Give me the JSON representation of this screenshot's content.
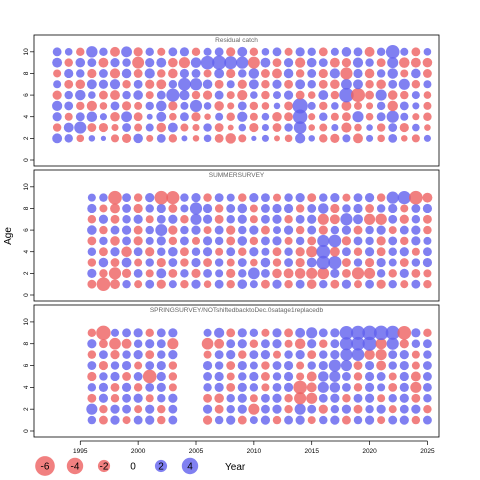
{
  "chart_data": {
    "type": "scatter",
    "subtype": "residual bubble plot",
    "xlabel": "Year",
    "ylabel": "Age",
    "xlim": [
      1991,
      2026
    ],
    "x_ticks": [
      1995,
      2000,
      2005,
      2010,
      2015,
      2020,
      2025
    ],
    "y_ticks": [
      0,
      2,
      4,
      6,
      8,
      10
    ],
    "colors": {
      "positive": "#6060ee",
      "negative": "#ee6060",
      "negative_alpha": 0.8,
      "positive_alpha": 0.8
    },
    "legend": {
      "placement": "bottom-left",
      "values": [
        -6,
        -4,
        -2,
        0,
        2,
        4
      ],
      "labels": [
        "-6",
        "-4",
        "-2",
        "0",
        "2",
        "4"
      ]
    },
    "panels": [
      {
        "title": "Residual catch",
        "ylim": [
          0,
          11
        ],
        "years": [
          1993,
          1994,
          1995,
          1996,
          1997,
          1998,
          1999,
          2000,
          2001,
          2002,
          2003,
          2004,
          2005,
          2006,
          2007,
          2008,
          2009,
          2010,
          2011,
          2012,
          2013,
          2014,
          2015,
          2016,
          2017,
          2018,
          2019,
          2020,
          2021,
          2022,
          2023,
          2024,
          2025
        ],
        "ages": [
          2,
          3,
          4,
          5,
          6,
          7,
          8,
          9,
          10
        ],
        "residuals": [
          [
            1.2,
            0.8,
            -0.6,
            0.4,
            0.2,
            -0.7,
            -1.0,
            1.1,
            -0.5,
            0.9,
            -0.8,
            0.3,
            -0.4,
            0.6,
            -0.9,
            -1.4,
            -0.7,
            0.2,
            0.5,
            -0.3,
            -0.6,
            1.3,
            0.4,
            -0.8,
            -1.0,
            0.7,
            -1.2,
            0.5,
            -0.6,
            0.9,
            -0.4,
            -0.7,
            0.5
          ],
          [
            -0.8,
            1.2,
            2.0,
            -0.9,
            -1.0,
            -0.5,
            0.9,
            -0.7,
            0.7,
            -1.1,
            1.2,
            -0.7,
            -0.5,
            0.8,
            -0.9,
            -0.3,
            0.6,
            -1.0,
            0.5,
            -0.9,
            0.8,
            2.2,
            -0.4,
            -0.7,
            0.5,
            -1.3,
            -0.6,
            0.4,
            -0.8,
            0.9,
            -1.0,
            0.6,
            -0.4
          ],
          [
            1.0,
            -0.7,
            0.9,
            1.4,
            0.5,
            -1.1,
            1.5,
            -0.9,
            0.3,
            1.2,
            -0.6,
            0.9,
            -1.0,
            -0.4,
            0.7,
            -0.8,
            1.3,
            -0.7,
            0.6,
            -1.1,
            -0.9,
            3.0,
            -0.5,
            0.8,
            -0.7,
            -0.9,
            1.6,
            -0.6,
            0.9,
            2.0,
            0.7,
            -0.5,
            -0.8
          ],
          [
            1.3,
            0.9,
            -0.8,
            -1.3,
            -0.6,
            0.9,
            -1.0,
            -0.7,
            0.8,
            1.4,
            -1.0,
            0.7,
            2.0,
            0.6,
            -1.1,
            -0.5,
            0.9,
            -0.8,
            -0.6,
            0.4,
            -0.9,
            3.4,
            0.7,
            -0.8,
            0.6,
            -1.2,
            -0.7,
            -0.5,
            0.8,
            -1.4,
            0.9,
            0.5,
            -0.7
          ],
          [
            -1.0,
            0.8,
            1.4,
            0.6,
            -0.9,
            -1.2,
            0.8,
            1.1,
            -0.7,
            0.9,
            2.4,
            1.3,
            -0.8,
            -1.0,
            0.9,
            -0.7,
            -1.3,
            0.6,
            -0.8,
            0.7,
            1.0,
            -0.9,
            -0.6,
            1.2,
            -0.8,
            3.0,
            -2.8,
            -0.9,
            1.6,
            -1.1,
            -0.8,
            0.7,
            -0.6
          ],
          [
            0.7,
            -0.9,
            -1.1,
            1.2,
            1.0,
            1.3,
            -0.8,
            0.9,
            -1.0,
            -1.2,
            0.8,
            2.2,
            2.0,
            1.1,
            -0.9,
            0.7,
            -1.0,
            1.2,
            -0.8,
            1.0,
            -0.9,
            1.2,
            0.8,
            -0.9,
            -1.1,
            1.5,
            1.2,
            -0.8,
            -1.1,
            0.9,
            1.6,
            -0.8,
            0.7
          ],
          [
            -0.7,
            1.0,
            0.8,
            -1.0,
            0.9,
            -1.3,
            1.1,
            -0.9,
            1.3,
            -0.8,
            -1.1,
            1.0,
            0.9,
            -0.7,
            1.2,
            -1.0,
            0.8,
            1.4,
            -0.9,
            -1.2,
            1.1,
            -0.8,
            0.9,
            -1.0,
            1.3,
            -2.0,
            1.0,
            -1.1,
            0.8,
            1.4,
            -0.7,
            1.1,
            -0.9
          ],
          [
            1.2,
            -0.8,
            1.1,
            0.9,
            -1.2,
            1.0,
            0.8,
            -1.9,
            1.0,
            1.2,
            -1.1,
            -1.6,
            1.4,
            2.6,
            2.8,
            2.3,
            2.0,
            -1.9,
            1.2,
            -0.9,
            1.0,
            -1.3,
            1.1,
            0.9,
            -1.2,
            -1.0,
            1.3,
            0.8,
            -0.9,
            1.6,
            -1.4,
            -1.2,
            -1.1
          ],
          [
            0.9,
            0.6,
            -0.8,
            1.7,
            0.8,
            -1.2,
            1.5,
            -1.0,
            0.8,
            -0.7,
            0.9,
            1.0,
            -0.8,
            0.7,
            0.9,
            -1.0,
            1.2,
            -0.8,
            0.6,
            0.9,
            -0.7,
            1.0,
            0.8,
            -0.9,
            0.7,
            1.1,
            0.9,
            -1.2,
            0.8,
            2.6,
            0.7,
            -0.9,
            0.6
          ]
        ]
      },
      {
        "title": "SUMMERSURVEY",
        "ylim": [
          0,
          11
        ],
        "years": [
          1996,
          1997,
          1998,
          1999,
          2000,
          2001,
          2002,
          2003,
          2004,
          2005,
          2006,
          2007,
          2008,
          2009,
          2010,
          2011,
          2012,
          2013,
          2014,
          2015,
          2016,
          2017,
          2018,
          2019,
          2020,
          2021,
          2022,
          2023,
          2024,
          2025
        ],
        "ages": [
          1,
          2,
          3,
          4,
          5,
          6,
          7,
          8,
          9
        ],
        "residuals": [
          [
            -0.9,
            -2.6,
            -1.2,
            0.8,
            -0.7,
            0.9,
            -1.0,
            0.7,
            -0.8,
            1.0,
            -0.6,
            0.9,
            -0.8,
            1.1,
            0.7,
            -0.9,
            1.0,
            -0.8,
            0.9,
            -1.1,
            0.8,
            -0.9,
            1.0,
            -0.7,
            0.9,
            -1.0,
            0.8,
            -0.7,
            0.9,
            -0.8
          ],
          [
            1.0,
            -0.8,
            -2.0,
            -1.0,
            0.9,
            -0.7,
            1.2,
            -0.9,
            0.8,
            -1.0,
            0.9,
            0.7,
            -1.0,
            0.8,
            1.8,
            0.9,
            -1.1,
            -1.2,
            -1.4,
            -1.6,
            -1.8,
            1.0,
            -0.9,
            -2.0,
            -1.6,
            0.8,
            -0.8,
            1.0,
            -0.9,
            -0.7
          ],
          [
            -0.8,
            1.1,
            -0.9,
            1.2,
            -0.7,
            0.8,
            -1.0,
            0.9,
            -0.8,
            1.0,
            -0.9,
            0.8,
            -0.7,
            0.9,
            -0.6,
            1.1,
            -0.8,
            0.9,
            -1.0,
            1.2,
            2.6,
            2.4,
            -0.9,
            0.8,
            -1.0,
            1.0,
            0.7,
            -0.9,
            0.8,
            1.0
          ],
          [
            0.8,
            -0.9,
            1.0,
            -1.4,
            0.9,
            -1.0,
            0.8,
            1.1,
            -0.9,
            0.8,
            1.0,
            -0.7,
            0.9,
            -0.8,
            1.0,
            0.7,
            -0.9,
            0.8,
            -1.0,
            -1.6,
            2.6,
            -1.2,
            0.9,
            -0.8,
            1.0,
            -0.9,
            0.8,
            1.0,
            -0.7,
            0.9
          ],
          [
            -0.9,
            0.8,
            -1.1,
            0.9,
            -1.0,
            0.7,
            1.0,
            -0.8,
            0.9,
            -0.7,
            1.0,
            0.8,
            -0.9,
            1.1,
            -0.8,
            0.9,
            1.0,
            -0.7,
            0.8,
            -0.9,
            2.0,
            2.2,
            -1.0,
            0.9,
            0.8,
            -1.0,
            0.9,
            -0.8,
            1.0,
            0.7
          ],
          [
            1.1,
            -0.8,
            0.9,
            1.0,
            -0.9,
            0.8,
            1.9,
            -1.0,
            0.8,
            1.0,
            -0.7,
            0.9,
            -1.0,
            0.8,
            1.0,
            -0.9,
            0.7,
            1.0,
            -0.8,
            0.9,
            -1.0,
            0.8,
            1.0,
            -0.9,
            0.8,
            1.0,
            -0.7,
            0.9,
            1.0,
            -0.8
          ],
          [
            -0.8,
            1.0,
            -0.9,
            0.8,
            1.0,
            -0.7,
            0.9,
            1.0,
            -0.8,
            1.6,
            1.0,
            -0.9,
            0.8,
            1.0,
            -0.7,
            0.9,
            1.0,
            -0.8,
            0.9,
            1.0,
            -1.6,
            -1.2,
            2.0,
            1.2,
            -1.6,
            -1.7,
            0.9,
            -1.0,
            0.8,
            -0.9
          ],
          [
            1.0,
            -0.7,
            -1.2,
            0.9,
            -1.0,
            0.8,
            1.0,
            -0.9,
            0.7,
            2.0,
            1.0,
            -0.8,
            0.9,
            1.1,
            -0.7,
            0.9,
            1.0,
            1.0,
            -0.8,
            0.9,
            1.4,
            -1.0,
            0.8,
            1.0,
            -0.9,
            0.8,
            1.0,
            -0.7,
            0.9,
            1.0
          ],
          [
            0.7,
            0.8,
            -2.6,
            0.9,
            -0.8,
            1.0,
            -2.6,
            -2.4,
            0.8,
            1.0,
            -0.8,
            0.9,
            0.7,
            -0.8,
            1.0,
            0.9,
            -0.7,
            0.8,
            1.0,
            -0.9,
            0.8,
            1.0,
            -0.7,
            0.9,
            1.0,
            -0.8,
            2.0,
            2.4,
            -2.6,
            -1.2
          ]
        ]
      },
      {
        "title": "SPRINGSURVEY/NOTshiftedbacktoDec.0satage1replacedb",
        "ylim": [
          0,
          11
        ],
        "years": [
          1996,
          1997,
          1998,
          1999,
          2000,
          2001,
          2002,
          2003,
          2006,
          2007,
          2008,
          2009,
          2010,
          2011,
          2012,
          2013,
          2014,
          2015,
          2016,
          2017,
          2018,
          2019,
          2020,
          2021,
          2022,
          2023,
          2024,
          2025
        ],
        "ages": [
          1,
          2,
          3,
          4,
          5,
          6,
          7,
          8,
          9
        ],
        "residuals": [
          [
            0.8,
            -0.9,
            1.0,
            -0.7,
            0.9,
            1.0,
            -0.8,
            0.9,
            -1.0,
            0.8,
            1.0,
            -0.9,
            0.7,
            1.0,
            -0.8,
            0.9,
            1.0,
            -0.7,
            0.8,
            1.0,
            -0.9,
            0.8,
            1.0,
            -0.7,
            0.9,
            1.0,
            -0.8,
            0.9
          ],
          [
            1.6,
            -0.8,
            1.0,
            0.9,
            -0.7,
            1.0,
            -0.8,
            0.9,
            1.0,
            -0.9,
            0.8,
            1.0,
            -1.6,
            0.9,
            1.0,
            -0.8,
            1.6,
            0.9,
            -1.0,
            0.8,
            1.0,
            -0.9,
            0.8,
            1.0,
            -0.7,
            0.9,
            1.0,
            -0.8
          ],
          [
            -0.9,
            1.0,
            -0.8,
            0.9,
            1.0,
            -0.7,
            0.8,
            1.0,
            -0.9,
            -1.1,
            0.8,
            1.0,
            -0.7,
            0.9,
            1.0,
            -0.8,
            -2.0,
            -1.6,
            0.9,
            1.0,
            -0.8,
            0.9,
            1.0,
            -0.7,
            0.8,
            1.0,
            -0.9,
            0.8
          ],
          [
            0.8,
            1.0,
            -0.9,
            1.0,
            -0.8,
            0.9,
            1.0,
            -0.7,
            0.8,
            1.0,
            -0.9,
            1.0,
            0.8,
            -0.7,
            0.9,
            1.0,
            -2.6,
            -1.2,
            1.6,
            1.4,
            0.9,
            -0.8,
            1.0,
            0.7,
            -0.9,
            1.0,
            -1.6,
            0.9
          ],
          [
            -1.0,
            0.8,
            1.0,
            -0.9,
            0.9,
            -2.6,
            1.0,
            -0.8,
            0.9,
            1.0,
            -0.7,
            0.8,
            1.0,
            -0.9,
            0.8,
            1.0,
            -0.7,
            -1.2,
            1.4,
            1.6,
            0.9,
            -0.8,
            1.0,
            0.9,
            -0.7,
            1.0,
            -1.2,
            0.9
          ],
          [
            0.9,
            -1.0,
            0.8,
            1.0,
            -0.7,
            0.9,
            1.0,
            -0.8,
            1.0,
            0.8,
            -0.9,
            1.0,
            0.7,
            -0.8,
            0.9,
            1.0,
            -0.7,
            0.8,
            1.0,
            2.0,
            1.6,
            -0.9,
            1.0,
            -1.2,
            0.8,
            1.0,
            -0.7,
            0.9
          ],
          [
            -0.8,
            0.9,
            -1.0,
            0.8,
            1.0,
            -0.9,
            0.8,
            1.0,
            -0.7,
            0.9,
            1.0,
            -0.8,
            0.9,
            1.0,
            -0.7,
            0.8,
            1.0,
            -0.9,
            0.8,
            1.0,
            2.0,
            2.2,
            -1.4,
            -1.6,
            0.9,
            1.0,
            -0.7,
            0.8
          ],
          [
            1.0,
            -0.9,
            -1.8,
            -1.2,
            0.8,
            1.0,
            0.9,
            -1.6,
            -1.8,
            -1.2,
            0.9,
            1.0,
            -0.8,
            0.9,
            1.0,
            -0.7,
            -1.4,
            1.0,
            -0.8,
            0.9,
            2.4,
            2.6,
            2.8,
            -1.6,
            2.0,
            -1.0,
            0.8,
            0.9
          ],
          [
            -0.8,
            -3.0,
            0.7,
            0.9,
            1.0,
            -0.8,
            0.9,
            1.0,
            0.7,
            1.3,
            -0.9,
            1.0,
            0.8,
            -0.7,
            1.0,
            -0.9,
            1.2,
            1.6,
            0.9,
            1.0,
            2.6,
            2.8,
            3.0,
            3.0,
            2.8,
            -2.6,
            1.0,
            -0.8
          ]
        ]
      }
    ]
  }
}
